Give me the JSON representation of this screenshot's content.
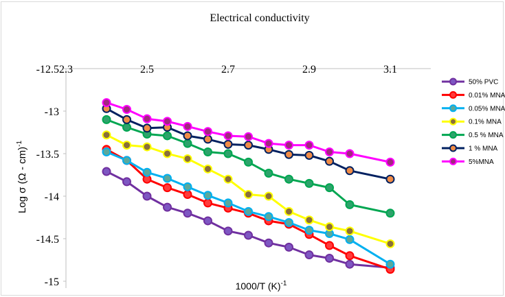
{
  "chart_data": {
    "type": "line",
    "title": "Electrical conductivity",
    "xlabel": "1000/T (K)",
    "xlabel_sup": "-1",
    "ylabel": "Log σ (Ω - cm)",
    "ylabel_sup": "-1",
    "xlim": [
      2.3,
      3.2
    ],
    "ylim": [
      -15,
      -12.5
    ],
    "x_ticks": [
      2.3,
      2.5,
      2.7,
      2.9,
      3.1
    ],
    "x_tick_labels": [
      "2.3",
      "2.5",
      "2.7",
      "2.9",
      "3.1"
    ],
    "y_ticks": [
      -12.5,
      -13,
      -13.5,
      -14,
      -14.5,
      -15
    ],
    "y_tick_labels": [
      "-12.5",
      "-13",
      "-13.5",
      "-14",
      "-14.5",
      "-15"
    ],
    "x_axis_position": "top",
    "grid": false,
    "legend_position": "right",
    "x": [
      2.4,
      2.45,
      2.5,
      2.55,
      2.6,
      2.65,
      2.7,
      2.75,
      2.8,
      2.85,
      2.9,
      2.95,
      3.0,
      3.1
    ],
    "series": [
      {
        "name": "50% PVC",
        "line_color": "#7030A0",
        "marker_color": "#7E57C2",
        "values": [
          -13.71,
          -13.83,
          -14.0,
          -14.13,
          -14.2,
          -14.29,
          -14.41,
          -14.46,
          -14.55,
          -14.6,
          -14.69,
          -14.73,
          -14.8,
          -14.84
        ]
      },
      {
        "name": "0.01% MNA",
        "line_color": "#FF0000",
        "marker_color": "#FF3B3B",
        "values": [
          -13.45,
          -13.58,
          -13.8,
          -13.9,
          -13.98,
          -14.08,
          -14.14,
          -14.2,
          -14.29,
          -14.33,
          -14.45,
          -14.58,
          -14.7,
          -14.86
        ]
      },
      {
        "name": "0.05% MNA",
        "line_color": "#00B0F0",
        "marker_color": "#5BA89C",
        "values": [
          -13.48,
          -13.58,
          -13.72,
          -13.79,
          -13.89,
          -13.99,
          -14.08,
          -14.18,
          -14.24,
          -14.31,
          -14.4,
          -14.44,
          -14.51,
          -14.8
        ]
      },
      {
        "name": "0.1% MNA",
        "line_color": "#FFFF00",
        "marker_color": "#8A6F3A",
        "values": [
          -13.28,
          -13.4,
          -13.42,
          -13.5,
          -13.56,
          -13.68,
          -13.8,
          -13.98,
          -14.0,
          -14.18,
          -14.28,
          -14.36,
          -14.41,
          -14.56
        ]
      },
      {
        "name": "0.5 % MNA",
        "line_color": "#00A651",
        "marker_color": "#2DA36B",
        "values": [
          -13.1,
          -13.19,
          -13.27,
          -13.29,
          -13.38,
          -13.48,
          -13.5,
          -13.6,
          -13.73,
          -13.8,
          -13.85,
          -13.9,
          -14.1,
          -14.2
        ]
      },
      {
        "name": "1 % MNA",
        "line_color": "#002060",
        "marker_color": "#F08C46",
        "values": [
          -12.97,
          -13.1,
          -13.2,
          -13.19,
          -13.29,
          -13.33,
          -13.39,
          -13.4,
          -13.45,
          -13.51,
          -13.52,
          -13.59,
          -13.7,
          -13.8
        ]
      },
      {
        "name": "5%MNA",
        "line_color": "#FF00FF",
        "marker_color": "#A2267F",
        "values": [
          -12.9,
          -12.98,
          -13.09,
          -13.12,
          -13.18,
          -13.24,
          -13.29,
          -13.3,
          -13.38,
          -13.4,
          -13.4,
          -13.48,
          -13.5,
          -13.6
        ]
      }
    ]
  }
}
